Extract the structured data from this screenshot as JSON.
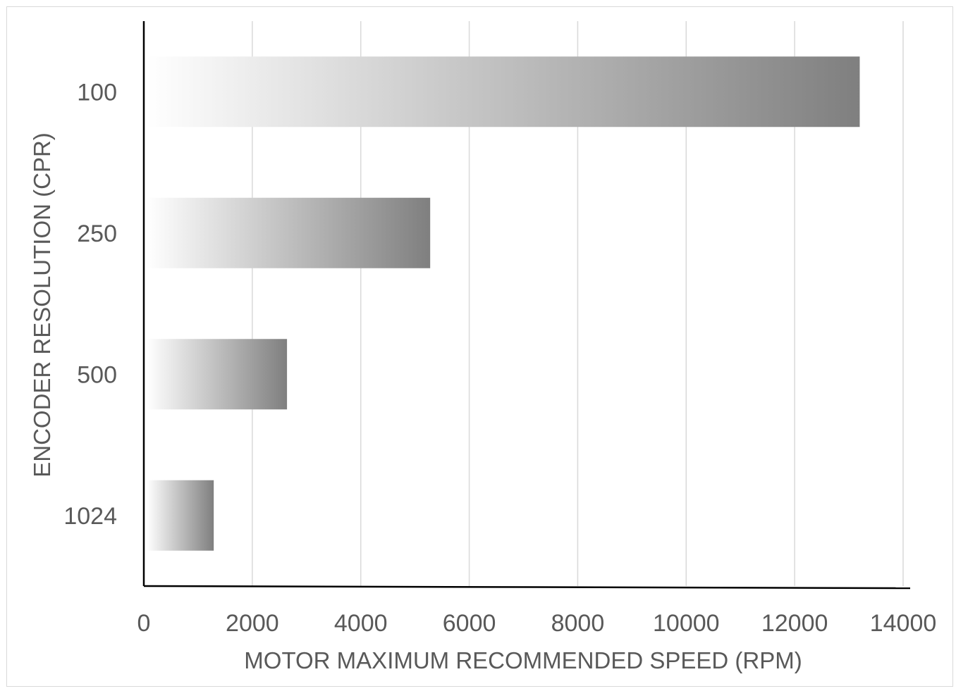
{
  "chart_data": {
    "type": "bar",
    "orientation": "horizontal",
    "title": "",
    "xlabel": "MOTOR MAXIMUM RECOMMENDED SPEED (RPM)",
    "ylabel": "ENCODER RESOLUTION (CPR)",
    "categories": [
      "100",
      "250",
      "500",
      "1024"
    ],
    "values": [
      13200,
      5280,
      2640,
      1289
    ],
    "xlim": [
      0,
      14000
    ],
    "xticks": [
      "0",
      "2000",
      "4000",
      "6000",
      "8000",
      "10000",
      "12000",
      "14000"
    ],
    "grid": "vertical",
    "legend": "none",
    "bar_gradient": [
      "#ffffff",
      "#7f7f7f"
    ],
    "colors": {
      "axis": "#000000",
      "gridline": "#d9d9d9",
      "text": "#595959",
      "frame": "#d9d9d9"
    }
  }
}
